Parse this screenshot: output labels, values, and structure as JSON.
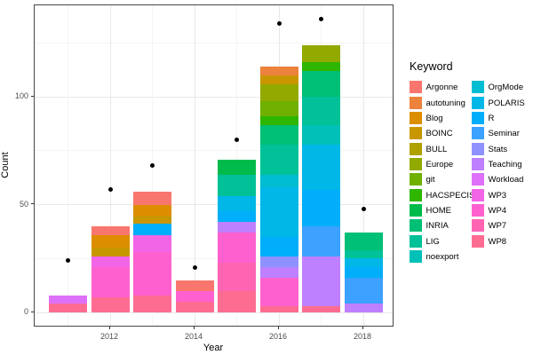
{
  "chart_data": {
    "type": "bar",
    "subtype": "stacked-bar-with-points",
    "title": "",
    "xlabel": "Year",
    "ylabel": "Count",
    "legend_title": "Keyword",
    "legend_position": "right",
    "grid": true,
    "x_major_ticks": [
      2012,
      2014,
      2016,
      2018
    ],
    "x_minor_years": [
      2011,
      2013,
      2015,
      2017
    ],
    "y_major_ticks": [
      0,
      50,
      100
    ],
    "y_minor_ticks": [
      25,
      75,
      125
    ],
    "ylim": [
      -7,
      142.5
    ],
    "point_color": "#000000",
    "keywords": [
      {
        "name": "Argonne",
        "color": "#F8766D"
      },
      {
        "name": "autotuning",
        "color": "#EC823C"
      },
      {
        "name": "Blog",
        "color": "#DD8D00"
      },
      {
        "name": "BOINC",
        "color": "#C89700"
      },
      {
        "name": "BULL",
        "color": "#AEA100"
      },
      {
        "name": "Europe",
        "color": "#92A900"
      },
      {
        "name": "git",
        "color": "#6FB000"
      },
      {
        "name": "HACSPECIS",
        "color": "#2FB600"
      },
      {
        "name": "HOME",
        "color": "#00BB4B"
      },
      {
        "name": "INRIA",
        "color": "#00BF76"
      },
      {
        "name": "LIG",
        "color": "#00C198"
      },
      {
        "name": "noexport",
        "color": "#00C0B7"
      },
      {
        "name": "OrgMode",
        "color": "#00BDD1"
      },
      {
        "name": "POLARIS",
        "color": "#00B7E8"
      },
      {
        "name": "R",
        "color": "#00AEF9"
      },
      {
        "name": "Seminar",
        "color": "#3DA1FF"
      },
      {
        "name": "Stats",
        "color": "#8F91FF"
      },
      {
        "name": "Teaching",
        "color": "#BE80FF"
      },
      {
        "name": "Workload",
        "color": "#DE71F9"
      },
      {
        "name": "WP3",
        "color": "#F265E7"
      },
      {
        "name": "WP4",
        "color": "#FE61CF"
      },
      {
        "name": "WP7",
        "color": "#FF64B3"
      },
      {
        "name": "WP8",
        "color": "#FF6C92"
      }
    ],
    "legend_columns": [
      [
        "Argonne",
        "autotuning",
        "Blog",
        "BOINC",
        "BULL",
        "Europe",
        "git",
        "HACSPECIS",
        "HOME",
        "INRIA",
        "LIG",
        "noexport"
      ],
      [
        "OrgMode",
        "POLARIS",
        "R",
        "Seminar",
        "Stats",
        "Teaching",
        "Workload",
        "WP3",
        "WP4",
        "WP7",
        "WP8"
      ]
    ],
    "bars": [
      {
        "year": 2011,
        "total": 8,
        "point": 24,
        "segments_bottom_to_top": [
          {
            "keyword": "WP8",
            "value": 4
          },
          {
            "keyword": "Workload",
            "value": 4
          }
        ]
      },
      {
        "year": 2012,
        "total": 40,
        "point": 57,
        "segments_bottom_to_top": [
          {
            "keyword": "WP8",
            "value": 7
          },
          {
            "keyword": "WP4",
            "value": 14
          },
          {
            "keyword": "WP3",
            "value": 5
          },
          {
            "keyword": "BOINC",
            "value": 4
          },
          {
            "keyword": "Blog",
            "value": 6
          },
          {
            "keyword": "Argonne",
            "value": 4
          }
        ]
      },
      {
        "year": 2013,
        "total": 56,
        "point": 68,
        "segments_bottom_to_top": [
          {
            "keyword": "WP8",
            "value": 8
          },
          {
            "keyword": "WP4",
            "value": 20
          },
          {
            "keyword": "WP3",
            "value": 8
          },
          {
            "keyword": "R",
            "value": 5
          },
          {
            "keyword": "BOINC",
            "value": 4
          },
          {
            "keyword": "Blog",
            "value": 5
          },
          {
            "keyword": "Argonne",
            "value": 6
          }
        ]
      },
      {
        "year": 2014,
        "total": 15,
        "point": 21,
        "segments_bottom_to_top": [
          {
            "keyword": "WP8",
            "value": 5
          },
          {
            "keyword": "WP4",
            "value": 5
          },
          {
            "keyword": "Argonne",
            "value": 5
          }
        ]
      },
      {
        "year": 2015,
        "total": 71,
        "point": 80,
        "segments_bottom_to_top": [
          {
            "keyword": "WP8",
            "value": 10
          },
          {
            "keyword": "WP7",
            "value": 13
          },
          {
            "keyword": "WP4",
            "value": 14
          },
          {
            "keyword": "Teaching",
            "value": 5
          },
          {
            "keyword": "R",
            "value": 5
          },
          {
            "keyword": "POLARIS",
            "value": 7
          },
          {
            "keyword": "LIG",
            "value": 10
          },
          {
            "keyword": "HOME",
            "value": 7
          }
        ]
      },
      {
        "year": 2016,
        "total": 114,
        "point": 134,
        "segments_bottom_to_top": [
          {
            "keyword": "WP8",
            "value": 3
          },
          {
            "keyword": "WP4",
            "value": 13
          },
          {
            "keyword": "Teaching",
            "value": 5
          },
          {
            "keyword": "Stats",
            "value": 5
          },
          {
            "keyword": "R",
            "value": 9
          },
          {
            "keyword": "POLARIS",
            "value": 23
          },
          {
            "keyword": "OrgMode",
            "value": 6
          },
          {
            "keyword": "LIG",
            "value": 14
          },
          {
            "keyword": "INRIA",
            "value": 9
          },
          {
            "keyword": "HACSPECIS",
            "value": 4
          },
          {
            "keyword": "git",
            "value": 7
          },
          {
            "keyword": "Europe",
            "value": 8
          },
          {
            "keyword": "BOINC",
            "value": 4
          },
          {
            "keyword": "autotuning",
            "value": 4
          }
        ]
      },
      {
        "year": 2017,
        "total": 124,
        "point": 136,
        "segments_bottom_to_top": [
          {
            "keyword": "WP8",
            "value": 3
          },
          {
            "keyword": "Teaching",
            "value": 23
          },
          {
            "keyword": "Seminar",
            "value": 14
          },
          {
            "keyword": "R",
            "value": 17
          },
          {
            "keyword": "POLARIS",
            "value": 21
          },
          {
            "keyword": "noexport",
            "value": 9
          },
          {
            "keyword": "LIG",
            "value": 13
          },
          {
            "keyword": "INRIA",
            "value": 12
          },
          {
            "keyword": "HACSPECIS",
            "value": 4
          },
          {
            "keyword": "Europe",
            "value": 8
          }
        ]
      },
      {
        "year": 2018,
        "total": 37,
        "point": 48,
        "segments_bottom_to_top": [
          {
            "keyword": "Teaching",
            "value": 4
          },
          {
            "keyword": "Seminar",
            "value": 12
          },
          {
            "keyword": "R",
            "value": 5
          },
          {
            "keyword": "POLARIS",
            "value": 4
          },
          {
            "keyword": "LIG",
            "value": 4
          },
          {
            "keyword": "INRIA",
            "value": 8
          }
        ]
      }
    ]
  }
}
